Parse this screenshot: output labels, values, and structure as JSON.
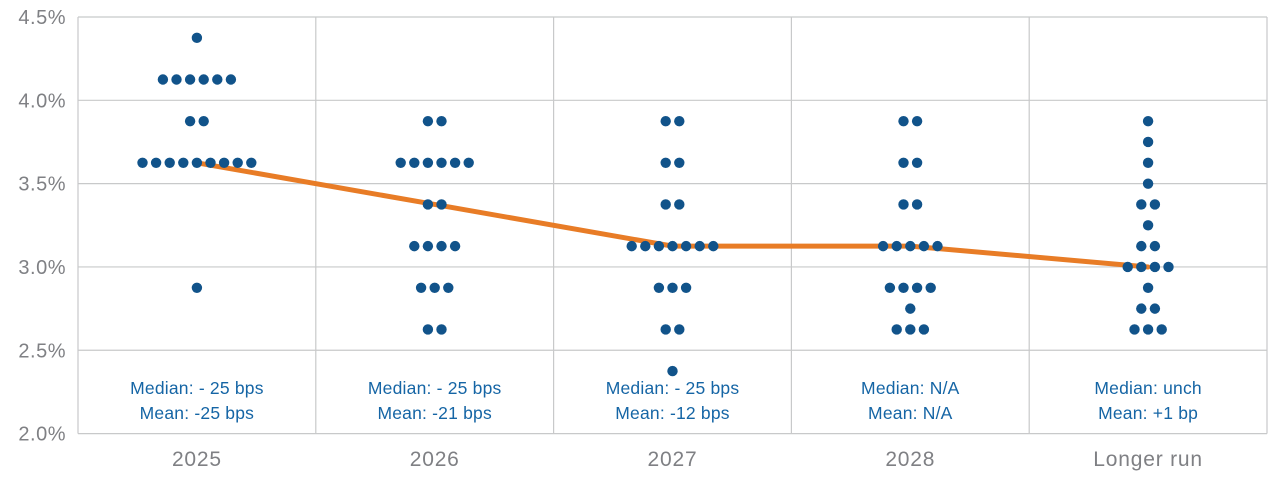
{
  "colors": {
    "dot": "#11538A",
    "median_line": "#E87C26",
    "annotation_text": "#1565A5",
    "axis_text": "#7F8084",
    "gridline": "#C8C9CA",
    "background": "#FFFFFF"
  },
  "chart_data": {
    "type": "scatter",
    "subtype": "dot-plot",
    "title": "",
    "xlabel": "",
    "ylabel": "",
    "grid": true,
    "legend": "none",
    "categories": [
      "2025",
      "2026",
      "2027",
      "2028",
      "Longer run"
    ],
    "y_axis": {
      "min": 2.0,
      "max": 4.5,
      "tick_values": [
        4.5,
        4.0,
        3.5,
        3.0,
        2.5,
        2.0
      ],
      "tick_labels": [
        "4.5%",
        "4.0%",
        "3.5%",
        "3.0%",
        "2.5%",
        "2.0%"
      ]
    },
    "panels": [
      {
        "label": "2025",
        "dots": [
          {
            "value": 4.375,
            "count": 1
          },
          {
            "value": 4.125,
            "count": 6
          },
          {
            "value": 3.875,
            "count": 2
          },
          {
            "value": 3.625,
            "count": 9
          },
          {
            "value": 2.875,
            "count": 1
          }
        ],
        "median_text": "Median: - 25 bps",
        "mean_text": "Mean: -25 bps"
      },
      {
        "label": "2026",
        "dots": [
          {
            "value": 3.875,
            "count": 2
          },
          {
            "value": 3.625,
            "count": 6
          },
          {
            "value": 3.375,
            "count": 2
          },
          {
            "value": 3.125,
            "count": 4
          },
          {
            "value": 2.875,
            "count": 3
          },
          {
            "value": 2.625,
            "count": 2
          }
        ],
        "median_text": "Median: - 25 bps",
        "mean_text": "Mean: -21 bps"
      },
      {
        "label": "2027",
        "dots": [
          {
            "value": 3.875,
            "count": 2
          },
          {
            "value": 3.625,
            "count": 2
          },
          {
            "value": 3.375,
            "count": 2
          },
          {
            "value": 3.125,
            "count": 7
          },
          {
            "value": 2.875,
            "count": 3
          },
          {
            "value": 2.625,
            "count": 2
          },
          {
            "value": 2.375,
            "count": 1
          }
        ],
        "median_text": "Median: - 25 bps",
        "mean_text": "Mean: -12 bps"
      },
      {
        "label": "2028",
        "dots": [
          {
            "value": 3.875,
            "count": 2
          },
          {
            "value": 3.625,
            "count": 2
          },
          {
            "value": 3.375,
            "count": 2
          },
          {
            "value": 3.125,
            "count": 5
          },
          {
            "value": 2.875,
            "count": 4
          },
          {
            "value": 2.75,
            "count": 1
          },
          {
            "value": 2.625,
            "count": 3
          }
        ],
        "median_text": "Median: N/A",
        "mean_text": "Mean: N/A"
      },
      {
        "label": "Longer run",
        "dots": [
          {
            "value": 3.875,
            "count": 1
          },
          {
            "value": 3.75,
            "count": 1
          },
          {
            "value": 3.625,
            "count": 1
          },
          {
            "value": 3.5,
            "count": 1
          },
          {
            "value": 3.375,
            "count": 2
          },
          {
            "value": 3.25,
            "count": 1
          },
          {
            "value": 3.125,
            "count": 2
          },
          {
            "value": 3.0,
            "count": 4
          },
          {
            "value": 2.875,
            "count": 1
          },
          {
            "value": 2.75,
            "count": 2
          },
          {
            "value": 2.625,
            "count": 3
          }
        ],
        "median_text": "Median: unch",
        "mean_text": "Mean: +1 bp"
      }
    ],
    "median_line": {
      "description": "Median projection path across categories",
      "values": [
        3.625,
        3.375,
        3.125,
        3.125,
        3.0
      ]
    }
  }
}
